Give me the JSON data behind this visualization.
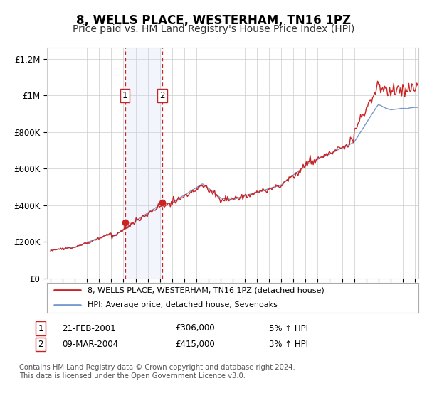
{
  "title": "8, WELLS PLACE, WESTERHAM, TN16 1PZ",
  "subtitle": "Price paid vs. HM Land Registry's House Price Index (HPI)",
  "title_fontsize": 12,
  "subtitle_fontsize": 10,
  "ylabel_ticks": [
    "£0",
    "£200K",
    "£400K",
    "£600K",
    "£800K",
    "£1M",
    "£1.2M"
  ],
  "ytick_values": [
    0,
    200000,
    400000,
    600000,
    800000,
    1000000,
    1200000
  ],
  "xlim_start": 1994.7,
  "xlim_end": 2025.3,
  "ylim_min": 0,
  "ylim_max": 1260000,
  "transaction1_date": 2001.13,
  "transaction1_price": 306000,
  "transaction1_label": "1",
  "transaction1_text": "21-FEB-2001",
  "transaction1_price_text": "£306,000",
  "transaction1_hpi_text": "5% ↑ HPI",
  "transaction2_date": 2004.19,
  "transaction2_price": 415000,
  "transaction2_label": "2",
  "transaction2_text": "09-MAR-2004",
  "transaction2_price_text": "£415,000",
  "transaction2_hpi_text": "3% ↑ HPI",
  "line1_label": "8, WELLS PLACE, WESTERHAM, TN16 1PZ (detached house)",
  "line2_label": "HPI: Average price, detached house, Sevenoaks",
  "line1_color": "#cc2222",
  "line2_color": "#7799cc",
  "marker_color": "#cc2222",
  "shade_color": "#ccddf5",
  "vline_color": "#cc2222",
  "grid_color": "#cccccc",
  "footer_text": "Contains HM Land Registry data © Crown copyright and database right 2024.\nThis data is licensed under the Open Government Licence v3.0.",
  "background_color": "#ffffff",
  "plot_bg_color": "#ffffff"
}
